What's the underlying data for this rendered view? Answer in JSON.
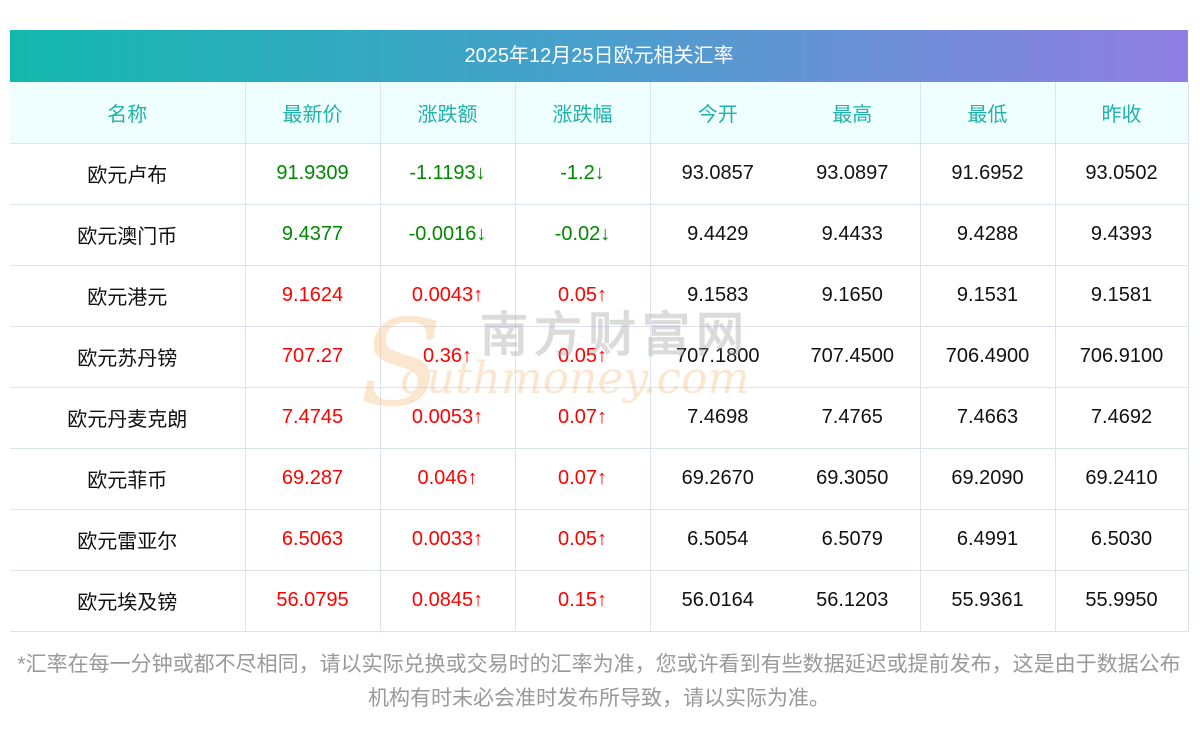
{
  "title": "2025年12月25日欧元相关汇率",
  "headers": [
    "名称",
    "最新价",
    "涨跌额",
    "涨跌幅",
    "今开",
    "最高",
    "最低",
    "昨收"
  ],
  "rows": [
    {
      "name": "欧元卢布",
      "price": "91.9309",
      "chg": "-1.1193↓",
      "pct": "-1.2↓",
      "open": "93.0857",
      "high": "93.0897",
      "low": "91.6952",
      "prev": "93.0502",
      "dir": "down"
    },
    {
      "name": "欧元澳门币",
      "price": "9.4377",
      "chg": "-0.0016↓",
      "pct": "-0.02↓",
      "open": "9.4429",
      "high": "9.4433",
      "low": "9.4288",
      "prev": "9.4393",
      "dir": "down"
    },
    {
      "name": "欧元港元",
      "price": "9.1624",
      "chg": "0.0043↑",
      "pct": "0.05↑",
      "open": "9.1583",
      "high": "9.1650",
      "low": "9.1531",
      "prev": "9.1581",
      "dir": "up"
    },
    {
      "name": "欧元苏丹镑",
      "price": "707.27",
      "chg": "0.36↑",
      "pct": "0.05↑",
      "open": "707.1800",
      "high": "707.4500",
      "low": "706.4900",
      "prev": "706.9100",
      "dir": "up"
    },
    {
      "name": "欧元丹麦克朗",
      "price": "7.4745",
      "chg": "0.0053↑",
      "pct": "0.07↑",
      "open": "7.4698",
      "high": "7.4765",
      "low": "7.4663",
      "prev": "7.4692",
      "dir": "up"
    },
    {
      "name": "欧元菲币",
      "price": "69.287",
      "chg": "0.046↑",
      "pct": "0.07↑",
      "open": "69.2670",
      "high": "69.3050",
      "low": "69.2090",
      "prev": "69.2410",
      "dir": "up"
    },
    {
      "name": "欧元雷亚尔",
      "price": "6.5063",
      "chg": "0.0033↑",
      "pct": "0.05↑",
      "open": "6.5054",
      "high": "6.5079",
      "low": "6.4991",
      "prev": "6.5030",
      "dir": "up"
    },
    {
      "name": "欧元埃及镑",
      "price": "56.0795",
      "chg": "0.0845↑",
      "pct": "0.15↑",
      "open": "56.0164",
      "high": "56.1203",
      "low": "55.9361",
      "prev": "55.9950",
      "dir": "up"
    }
  ],
  "note": "*汇率在每一分钟或都不尽相同，请以实际兑换或交易时的汇率为准，您或许看到有些数据延迟或提前发布，这是由于数据公布机构有时未必会准时发布所导致，请以实际为准。",
  "watermark": {
    "cn": "南方财富网",
    "en": "southmoney.com"
  },
  "colors": {
    "up": "#ff0000",
    "down": "#008800",
    "header_text": "#20b2aa"
  }
}
